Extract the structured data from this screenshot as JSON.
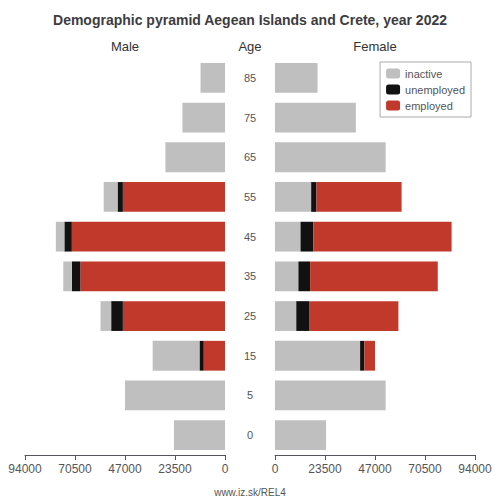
{
  "chart_data": {
    "type": "bar",
    "title": "Demographic pyramid Aegean Islands and Crete, year 2022",
    "annotations": [
      "www.iz.sk/REL4"
    ],
    "ylabel": "Age",
    "orientation": "horizontal",
    "stacked": true,
    "grid": false,
    "legend": "upper right",
    "categories": [
      "0",
      "5",
      "15",
      "25",
      "35",
      "45",
      "55",
      "65",
      "75",
      "85"
    ],
    "panels": [
      {
        "title": "Male",
        "xlim": [
          0,
          94000
        ],
        "xticks": [
          0,
          23500,
          47000,
          70500,
          94000
        ],
        "series": [
          {
            "name": "employed",
            "color": "#c0392b",
            "values": [
              0,
              0,
              10000,
              48000,
              68000,
              72000,
              48000,
              0,
              0,
              0
            ]
          },
          {
            "name": "unemployed",
            "color": "#111111",
            "values": [
              0,
              0,
              2000,
              5500,
              4000,
              3500,
              2500,
              0,
              0,
              0
            ]
          },
          {
            "name": "inactive",
            "color": "#bfbfbf",
            "values": [
              24000,
              47000,
              22000,
              5000,
              4000,
              4000,
              6500,
              28000,
              20000,
              11500
            ]
          }
        ]
      },
      {
        "title": "Female",
        "xlim": [
          0,
          94000
        ],
        "xticks": [
          0,
          23500,
          47000,
          70500,
          94000
        ],
        "series": [
          {
            "name": "inactive",
            "color": "#bfbfbf",
            "values": [
              24000,
              52000,
              40000,
              10000,
              11000,
              12000,
              17000,
              52000,
              38000,
              20000
            ]
          },
          {
            "name": "unemployed",
            "color": "#111111",
            "values": [
              0,
              0,
              2000,
              6000,
              5500,
              6000,
              2500,
              0,
              0,
              0
            ]
          },
          {
            "name": "employed",
            "color": "#c0392b",
            "values": [
              0,
              0,
              5000,
              42000,
              60000,
              65000,
              40000,
              0,
              0,
              0
            ]
          }
        ]
      }
    ]
  }
}
